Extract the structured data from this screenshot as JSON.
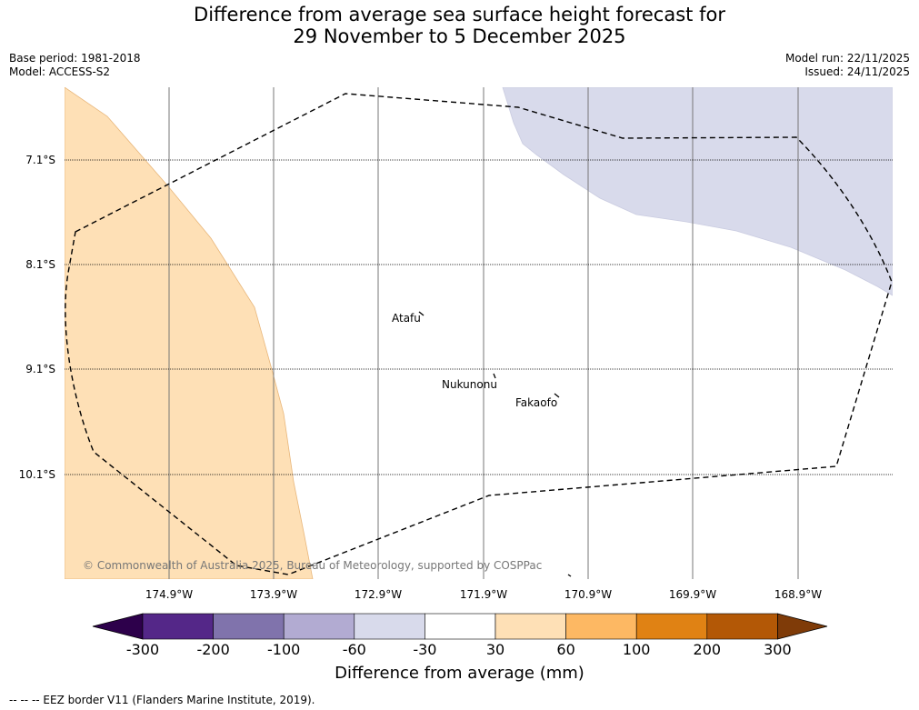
{
  "title_line1": "Difference from average sea surface height forecast for",
  "title_line2": "29 November to 5 December 2025",
  "base_period": "Base period: 1981-2018",
  "model": "Model: ACCESS-S2",
  "model_run": "Model run: 22/11/2025",
  "issued": "Issued: 24/11/2025",
  "latitudes": [
    "7.1°S",
    "8.1°S",
    "9.1°S",
    "10.1°S"
  ],
  "longitudes": [
    "174.9°W",
    "173.9°W",
    "172.9°W",
    "171.9°W",
    "170.9°W",
    "169.9°W",
    "168.9°W"
  ],
  "places": [
    "Atafu",
    "Nukunonu",
    "Fakaofo"
  ],
  "copyright": "© Commonwealth of Australia 2025, Bureau of Meteorology, supported by COSPPac",
  "colorbar": {
    "title": "Difference from average (mm)",
    "ticks": [
      "-300",
      "-200",
      "-100",
      "-60",
      "-30",
      "30",
      "60",
      "100",
      "200",
      "300"
    ],
    "colors": [
      "#2d004b",
      "#542788",
      "#8073ac",
      "#b2abd2",
      "#d8daeb",
      "#ffffff",
      "#fee0b6",
      "#fdb863",
      "#e08214",
      "#b35806",
      "#7f3b08"
    ]
  },
  "regions": [
    {
      "name": "positive-anomaly-west",
      "range": "30 to 60 mm",
      "color": "#fee0b6"
    },
    {
      "name": "negative-anomaly-northeast",
      "range": "-60 to -30 mm",
      "color": "#d8daeb"
    }
  ],
  "footer": "-- -- -- EEZ border V11 (Flanders Marine Institute, 2019)."
}
